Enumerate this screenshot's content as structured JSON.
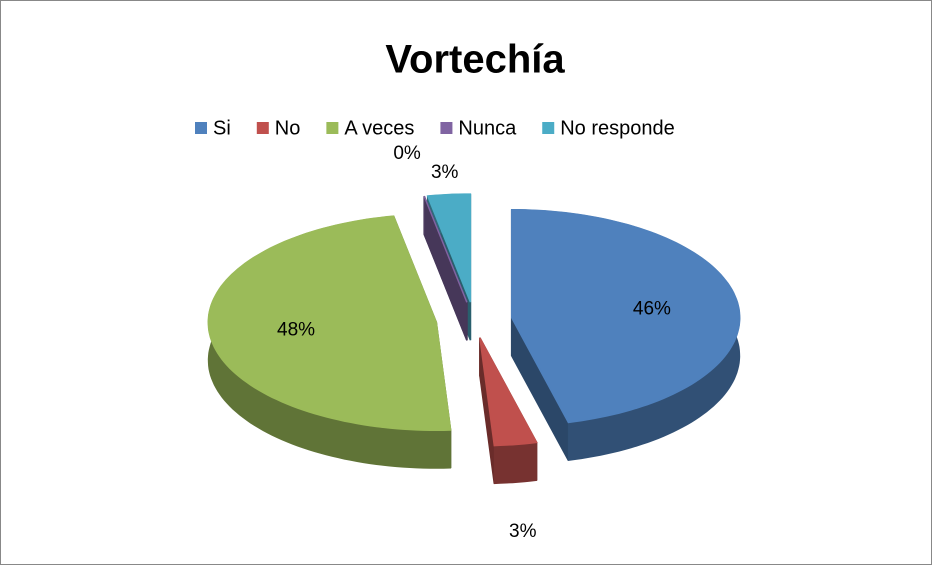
{
  "chart_data": {
    "type": "pie",
    "title": "Vortechía",
    "categories": [
      "Si",
      "No",
      "A veces",
      "Nunca",
      "No responde"
    ],
    "values": [
      46,
      3,
      48,
      0,
      3
    ],
    "value_labels": [
      "46%",
      "3%",
      "48%",
      "0%",
      "3%"
    ],
    "colors": [
      "#4f81bd",
      "#c0504d",
      "#9bbb59",
      "#8064a2",
      "#4bacc6"
    ],
    "legend": "top"
  }
}
